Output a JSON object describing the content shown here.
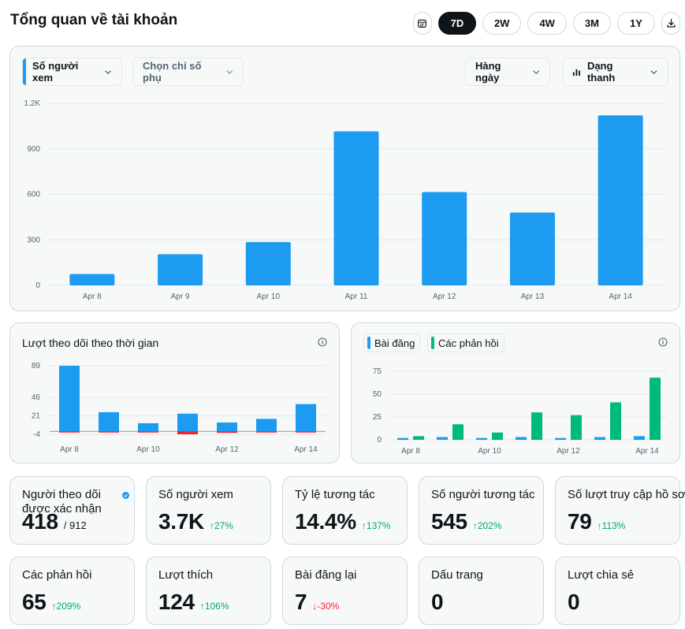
{
  "page": {
    "title": "Tổng quan về tài khoản"
  },
  "range_bar": {
    "calendar_icon": "calendar-icon",
    "options": [
      "7D",
      "2W",
      "4W",
      "3M",
      "1Y"
    ],
    "selected": "7D",
    "download_icon": "download-icon"
  },
  "main_chart": {
    "metric_dropdown": "Số người xem",
    "secondary_dropdown": "Chọn chỉ số phụ",
    "interval_dropdown": "Hàng ngày",
    "chart_type_dropdown": "Dạng thanh",
    "bar_color": "#1d9bf0"
  },
  "followers_chart": {
    "title": "Lượt theo dõi theo thời gian",
    "info_icon": "info-icon",
    "gain_color": "#1d9bf0",
    "loss_color": "#f4212e"
  },
  "posts_chart": {
    "legend_posts": "Bài đăng",
    "legend_replies": "Các phản hồi",
    "posts_color": "#1d9bf0",
    "replies_color": "#00ba7c",
    "info_icon": "info-icon"
  },
  "chart_data": [
    {
      "type": "bar",
      "title": "Số người xem",
      "categories": [
        "Apr 8",
        "Apr 9",
        "Apr 10",
        "Apr 11",
        "Apr 12",
        "Apr 13",
        "Apr 14"
      ],
      "values": [
        75,
        205,
        285,
        1015,
        615,
        480,
        1120
      ],
      "y_ticks": [
        "0",
        "300",
        "600",
        "900",
        "1.2K"
      ],
      "ylim": [
        0,
        1200
      ],
      "grid": true
    },
    {
      "type": "bar",
      "title": "Lượt theo dõi theo thời gian",
      "categories": [
        "Apr 8",
        "Apr 9",
        "Apr 10",
        "Apr 11",
        "Apr 12",
        "Apr 13",
        "Apr 14"
      ],
      "x_tick_labels": [
        "Apr 8",
        "Apr 10",
        "Apr 12",
        "Apr 14"
      ],
      "series": [
        {
          "name": "gained",
          "values": [
            89,
            26,
            11,
            24,
            12,
            17,
            37
          ]
        },
        {
          "name": "lost",
          "values": [
            -1,
            -1,
            -1,
            -4,
            -2,
            -1,
            -1
          ]
        }
      ],
      "y_ticks": [
        "-4",
        "21",
        "46",
        "89"
      ],
      "ylim": [
        -4,
        89
      ],
      "grid": true
    },
    {
      "type": "bar",
      "title": "Bài đăng / Các phản hồi",
      "categories": [
        "Apr 8",
        "Apr 9",
        "Apr 10",
        "Apr 11",
        "Apr 12",
        "Apr 13",
        "Apr 14"
      ],
      "x_tick_labels": [
        "Apr 8",
        "Apr 10",
        "Apr 12",
        "Apr 14"
      ],
      "series": [
        {
          "name": "Bài đăng",
          "values": [
            2,
            3,
            2,
            3,
            2,
            3,
            4
          ]
        },
        {
          "name": "Các phản hồi",
          "values": [
            4,
            17,
            8,
            30,
            27,
            41,
            68
          ]
        }
      ],
      "y_ticks": [
        "0",
        "25",
        "50",
        "75"
      ],
      "ylim": [
        0,
        75
      ],
      "grid": true
    }
  ],
  "stats": [
    {
      "label": "Người theo dõi được xác nhận",
      "value": "418",
      "sub": "/ 912",
      "change": "",
      "direction": "none",
      "verified_icon": "verified-badge-icon"
    },
    {
      "label": "Số người xem",
      "value": "3.7K",
      "change": "27%",
      "direction": "up"
    },
    {
      "label": "Tỷ lệ tương tác",
      "value": "14.4%",
      "change": "137%",
      "direction": "up"
    },
    {
      "label": "Số người tương tác",
      "value": "545",
      "change": "202%",
      "direction": "up"
    },
    {
      "label": "Số lượt truy cập hồ sơ",
      "value": "79",
      "change": "113%",
      "direction": "up"
    },
    {
      "label": "Các phản hồi",
      "value": "65",
      "change": "209%",
      "direction": "up"
    },
    {
      "label": "Lượt thích",
      "value": "124",
      "change": "106%",
      "direction": "up"
    },
    {
      "label": "Bài đăng lại",
      "value": "7",
      "change": "-30%",
      "direction": "down"
    },
    {
      "label": "Dấu trang",
      "value": "0",
      "change": "",
      "direction": "none"
    },
    {
      "label": "Lượt chia sẻ",
      "value": "0",
      "change": "",
      "direction": "none"
    }
  ]
}
